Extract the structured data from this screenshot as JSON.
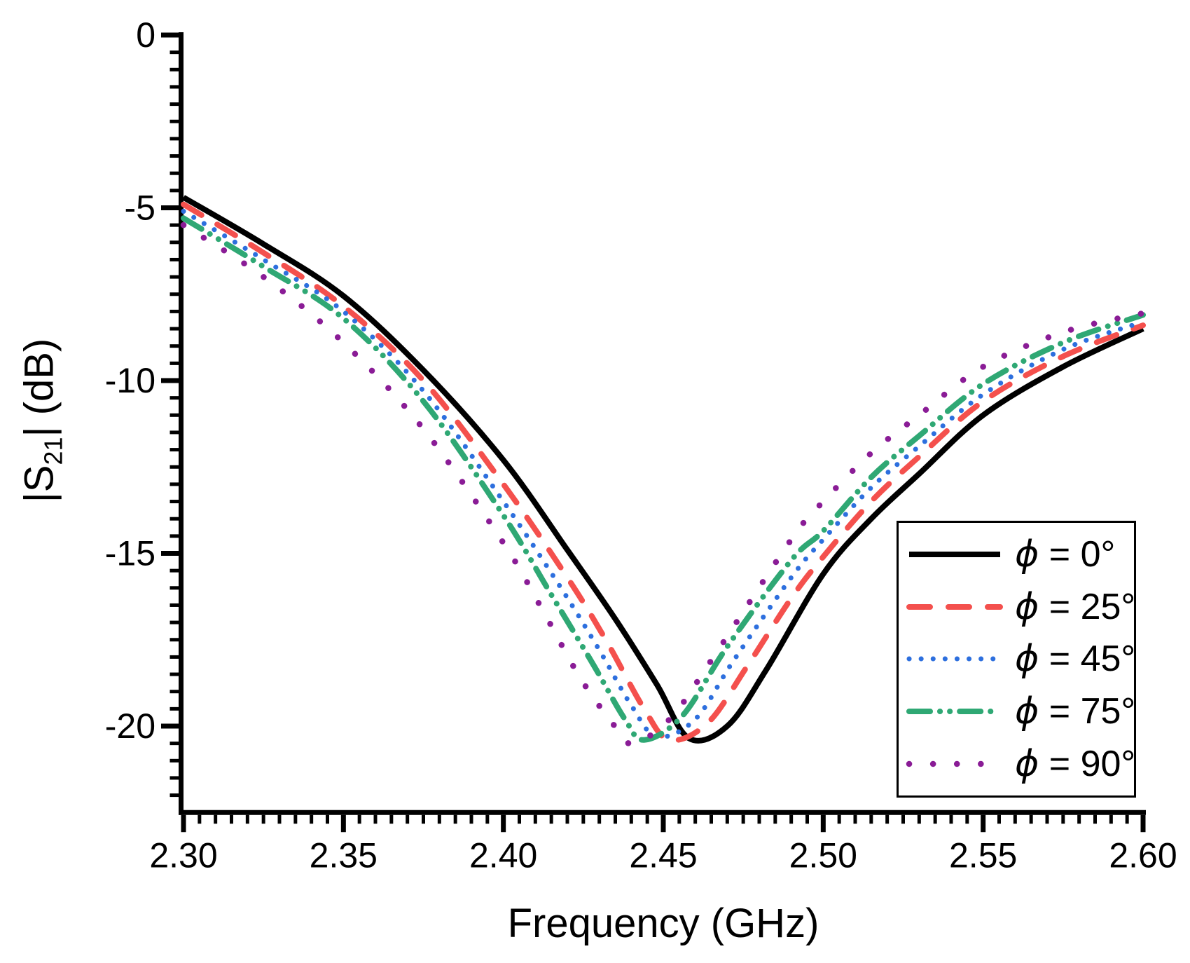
{
  "figure": {
    "background": "#ffffff",
    "axis_color": "#000000"
  },
  "axes": {
    "x": {
      "title": "Frequency (GHz)",
      "min": 2.3,
      "max": 2.6,
      "major_ticks": [
        2.3,
        2.35,
        2.4,
        2.45,
        2.5,
        2.55,
        2.6
      ],
      "tick_labels": [
        "2.30",
        "2.35",
        "2.40",
        "2.45",
        "2.50",
        "2.55",
        "2.60"
      ],
      "minor_step": 0.005
    },
    "y": {
      "title_prefix": "|S",
      "title_sub": "21",
      "title_suffix": "| (dB)",
      "min": -22.5,
      "max": 0,
      "major_ticks": [
        0,
        -5,
        -10,
        -15,
        -20
      ],
      "tick_labels": [
        "0",
        "-5",
        "-10",
        "-15",
        "-20"
      ],
      "minor_step": 0.5
    }
  },
  "legend": {
    "position": "inside-right",
    "entries": [
      {
        "phi": "ϕ",
        "rest": " = 0°",
        "series": "phi0"
      },
      {
        "phi": "ϕ",
        "rest": " = 25°",
        "series": "phi25"
      },
      {
        "phi": "ϕ",
        "rest": " = 45°",
        "series": "phi45"
      },
      {
        "phi": "ϕ",
        "rest": " = 75°",
        "series": "phi75"
      },
      {
        "phi": "ϕ",
        "rest": " = 90°",
        "series": "phi90"
      }
    ]
  },
  "chart_data": {
    "type": "line",
    "title": "",
    "xlabel": "Frequency (GHz)",
    "ylabel": "|S21| (dB)",
    "xlim": [
      2.3,
      2.6
    ],
    "ylim": [
      -22.5,
      0
    ],
    "grid": false,
    "legend_position": "inside right",
    "series": [
      {
        "key": "phi0",
        "name": "ϕ = 0°",
        "color": "#000000",
        "line_style": "solid",
        "line_width": 8,
        "points": [
          [
            2.3,
            -4.7
          ],
          [
            2.325,
            -6.05
          ],
          [
            2.35,
            -7.55
          ],
          [
            2.375,
            -9.7
          ],
          [
            2.4,
            -12.3
          ],
          [
            2.42,
            -14.9
          ],
          [
            2.435,
            -16.9
          ],
          [
            2.448,
            -18.8
          ],
          [
            2.458,
            -20.35
          ],
          [
            2.47,
            -20.0
          ],
          [
            2.482,
            -18.4
          ],
          [
            2.5,
            -15.6
          ],
          [
            2.515,
            -14.0
          ],
          [
            2.53,
            -12.7
          ],
          [
            2.55,
            -11.0
          ],
          [
            2.575,
            -9.6
          ],
          [
            2.6,
            -8.5
          ]
        ]
      },
      {
        "key": "phi25",
        "name": "ϕ = 25°",
        "color": "#F4504D",
        "line_style": "long-dash",
        "line_width": 8,
        "points": [
          [
            2.3,
            -4.9
          ],
          [
            2.325,
            -6.3
          ],
          [
            2.35,
            -7.85
          ],
          [
            2.375,
            -10.0
          ],
          [
            2.4,
            -13.0
          ],
          [
            2.42,
            -15.7
          ],
          [
            2.432,
            -17.5
          ],
          [
            2.444,
            -19.5
          ],
          [
            2.452,
            -20.4
          ],
          [
            2.464,
            -19.9
          ],
          [
            2.476,
            -18.3
          ],
          [
            2.49,
            -16.3
          ],
          [
            2.5,
            -15.1
          ],
          [
            2.515,
            -13.5
          ],
          [
            2.53,
            -12.2
          ],
          [
            2.55,
            -10.6
          ],
          [
            2.575,
            -9.3
          ],
          [
            2.6,
            -8.4
          ]
        ]
      },
      {
        "key": "phi45",
        "name": "ϕ = 45°",
        "color": "#2D6FDE",
        "line_style": "dot",
        "line_width": 7,
        "points": [
          [
            2.3,
            -5.1
          ],
          [
            2.325,
            -6.5
          ],
          [
            2.35,
            -8.0
          ],
          [
            2.375,
            -10.3
          ],
          [
            2.4,
            -13.5
          ],
          [
            2.418,
            -16.0
          ],
          [
            2.43,
            -17.8
          ],
          [
            2.44,
            -19.4
          ],
          [
            2.448,
            -20.3
          ],
          [
            2.46,
            -19.8
          ],
          [
            2.472,
            -18.1
          ],
          [
            2.49,
            -15.7
          ],
          [
            2.5,
            -14.6
          ],
          [
            2.515,
            -13.1
          ],
          [
            2.53,
            -11.9
          ],
          [
            2.55,
            -10.4
          ],
          [
            2.575,
            -9.1
          ],
          [
            2.6,
            -8.3
          ]
        ]
      },
      {
        "key": "phi75",
        "name": "ϕ = 75°",
        "color": "#2FA874",
        "line_style": "dash-dot-dot",
        "line_width": 8,
        "points": [
          [
            2.3,
            -5.3
          ],
          [
            2.325,
            -6.7
          ],
          [
            2.35,
            -8.2
          ],
          [
            2.375,
            -10.6
          ],
          [
            2.4,
            -13.9
          ],
          [
            2.415,
            -16.2
          ],
          [
            2.428,
            -18.2
          ],
          [
            2.438,
            -19.8
          ],
          [
            2.444,
            -20.4
          ],
          [
            2.456,
            -19.7
          ],
          [
            2.47,
            -17.7
          ],
          [
            2.49,
            -15.2
          ],
          [
            2.5,
            -14.35
          ],
          [
            2.515,
            -12.8
          ],
          [
            2.53,
            -11.6
          ],
          [
            2.55,
            -10.1
          ],
          [
            2.575,
            -8.9
          ],
          [
            2.6,
            -8.1
          ]
        ]
      },
      {
        "key": "phi90",
        "name": "ϕ = 90°",
        "color": "#8A1C96",
        "line_style": "sparse-dot",
        "line_width": 8.5,
        "points": [
          [
            2.3,
            -5.5
          ],
          [
            2.325,
            -7.0
          ],
          [
            2.35,
            -8.9
          ],
          [
            2.375,
            -11.4
          ],
          [
            2.4,
            -14.7
          ],
          [
            2.412,
            -16.6
          ],
          [
            2.424,
            -18.6
          ],
          [
            2.434,
            -19.9
          ],
          [
            2.44,
            -20.5
          ],
          [
            2.452,
            -19.8
          ],
          [
            2.465,
            -18.1
          ],
          [
            2.49,
            -14.6
          ],
          [
            2.5,
            -13.5
          ],
          [
            2.515,
            -12.1
          ],
          [
            2.53,
            -11.0
          ],
          [
            2.55,
            -9.6
          ],
          [
            2.575,
            -8.6
          ],
          [
            2.6,
            -8.05
          ]
        ]
      }
    ]
  }
}
